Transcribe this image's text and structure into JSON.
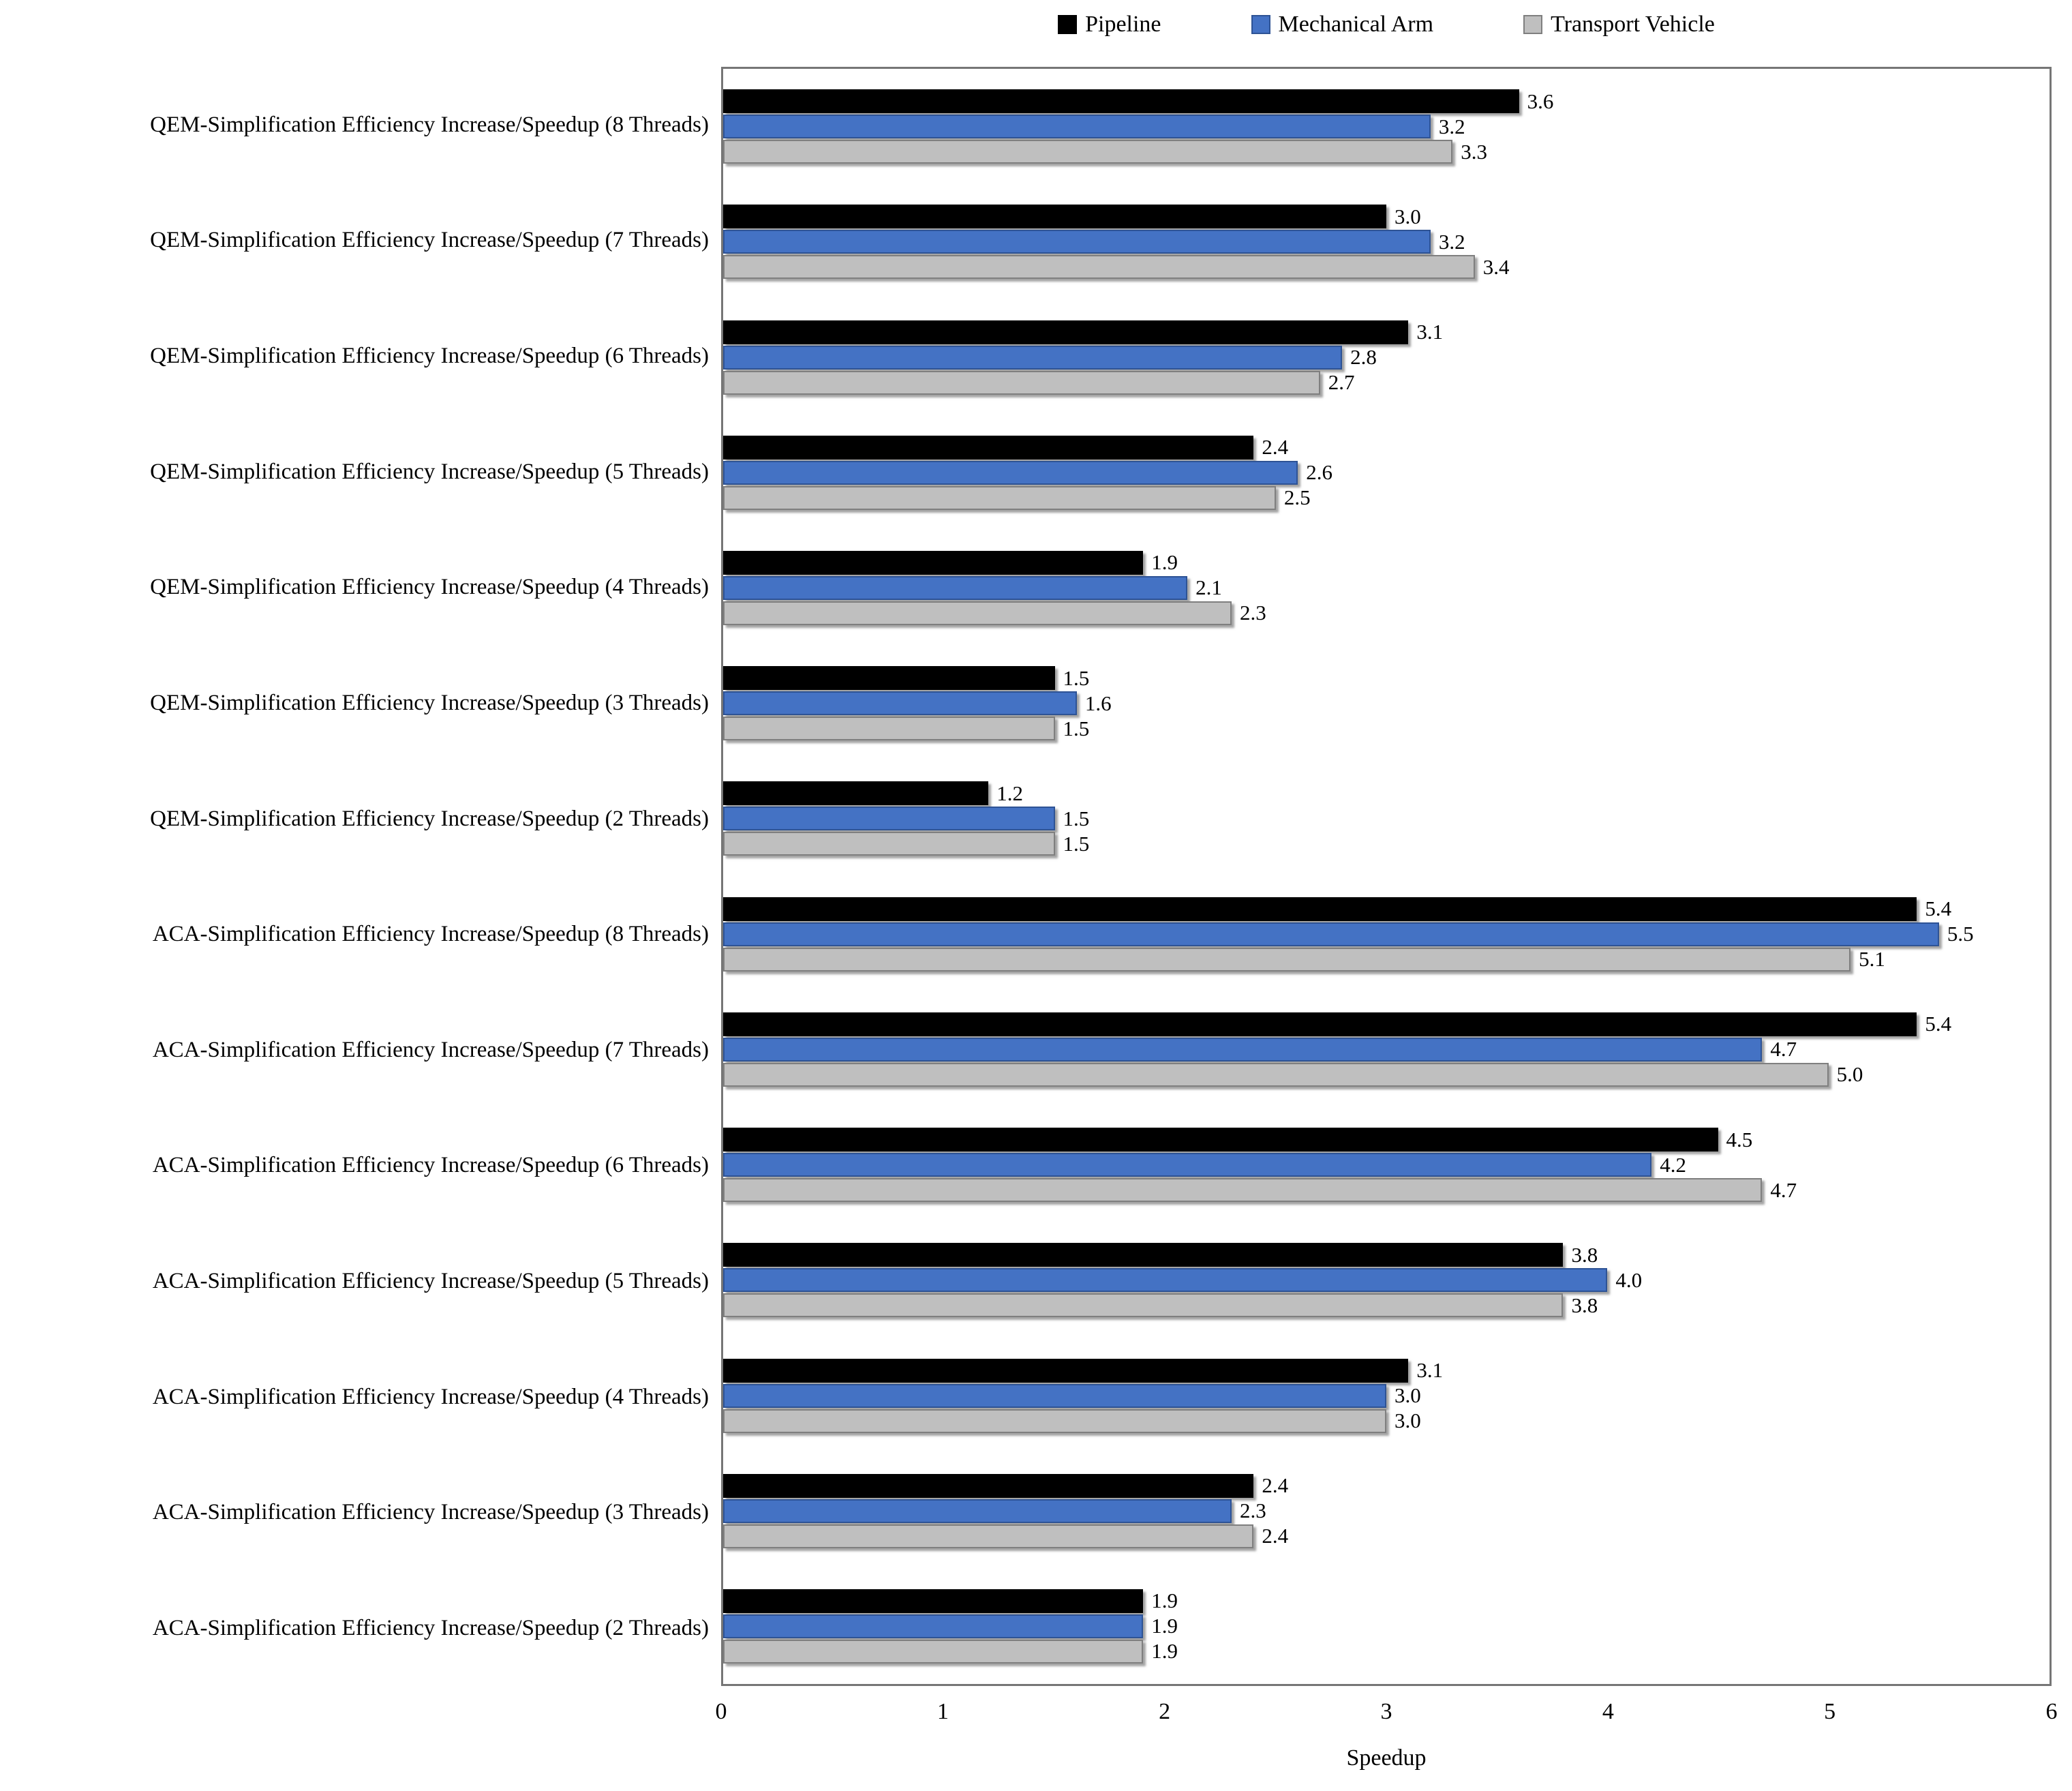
{
  "chart_data": {
    "type": "bar",
    "orientation": "horizontal",
    "title": "",
    "xlabel": "Speedup",
    "ylabel": "",
    "xlim": [
      0,
      6
    ],
    "xticks": [
      0,
      1,
      2,
      3,
      4,
      5,
      6
    ],
    "grid": false,
    "legend_position": "top",
    "value_labels": true,
    "value_decimals": 1,
    "categories": [
      "QEM-Simplification Efficiency Increase/Speedup (8 Threads)",
      "QEM-Simplification Efficiency Increase/Speedup (7 Threads)",
      "QEM-Simplification Efficiency Increase/Speedup (6 Threads)",
      "QEM-Simplification Efficiency Increase/Speedup (5 Threads)",
      "QEM-Simplification Efficiency Increase/Speedup (4 Threads)",
      "QEM-Simplification Efficiency Increase/Speedup (3 Threads)",
      "QEM-Simplification Efficiency Increase/Speedup (2 Threads)",
      "ACA-Simplification Efficiency Increase/Speedup (8 Threads)",
      "ACA-Simplification Efficiency Increase/Speedup (7 Threads)",
      "ACA-Simplification Efficiency Increase/Speedup (6 Threads)",
      "ACA-Simplification Efficiency Increase/Speedup (5 Threads)",
      "ACA-Simplification Efficiency Increase/Speedup (4 Threads)",
      "ACA-Simplification Efficiency Increase/Speedup (3 Threads)",
      "ACA-Simplification Efficiency Increase/Speedup (2 Threads)"
    ],
    "series": [
      {
        "name": "Pipeline",
        "color": "#000000",
        "border_color": "#000000",
        "values": [
          3.6,
          3.0,
          3.1,
          2.4,
          1.9,
          1.5,
          1.2,
          5.4,
          5.4,
          4.5,
          3.8,
          3.1,
          2.4,
          1.9
        ]
      },
      {
        "name": "Mechanical Arm",
        "color": "#4472C4",
        "border_color": "#2E5395",
        "values": [
          3.2,
          3.2,
          2.8,
          2.6,
          2.1,
          1.6,
          1.5,
          5.5,
          4.7,
          4.2,
          4.0,
          3.0,
          2.3,
          1.9
        ]
      },
      {
        "name": "Transport Vehicle",
        "color": "#BFBFBF",
        "border_color": "#7F7F7F",
        "values": [
          3.3,
          3.4,
          2.7,
          2.5,
          2.3,
          1.5,
          1.5,
          5.1,
          5.0,
          4.7,
          3.8,
          3.0,
          2.4,
          1.9
        ]
      }
    ]
  }
}
